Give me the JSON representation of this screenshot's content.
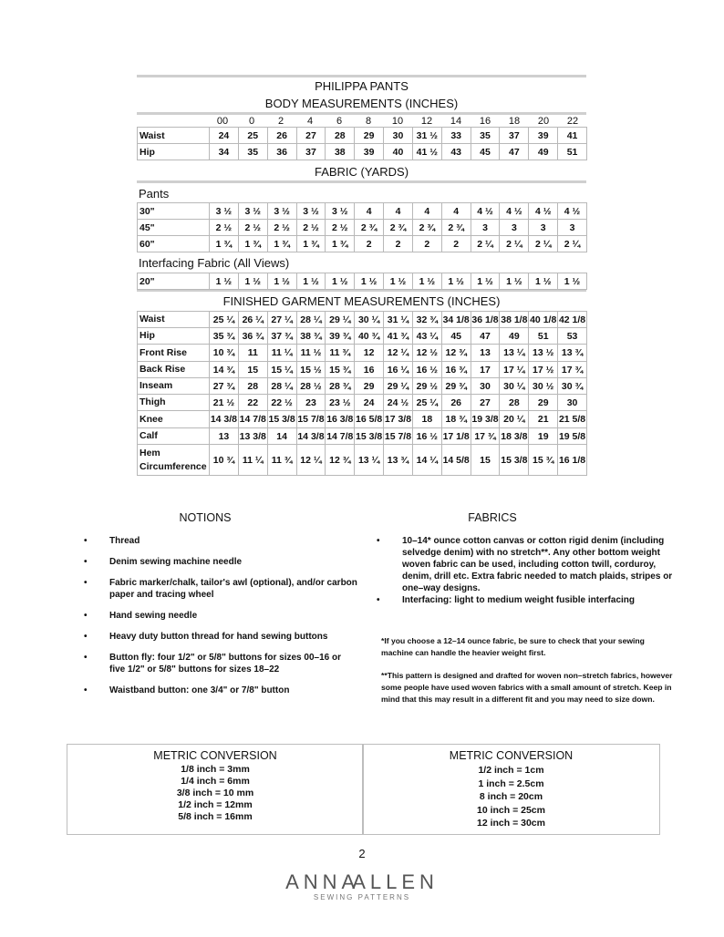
{
  "title": "PHILIPPA PANTS",
  "body_measurements": {
    "heading": "BODY MEASUREMENTS (INCHES)",
    "sizes": [
      "00",
      "0",
      "2",
      "4",
      "6",
      "8",
      "10",
      "12",
      "14",
      "16",
      "18",
      "20",
      "22"
    ],
    "rows": [
      {
        "label": "Waist",
        "values": [
          "24",
          "25",
          "26",
          "27",
          "28",
          "29",
          "30",
          "31 ½",
          "33",
          "35",
          "37",
          "39",
          "41"
        ]
      },
      {
        "label": "Hip",
        "values": [
          "34",
          "35",
          "36",
          "37",
          "38",
          "39",
          "40",
          "41 ½",
          "43",
          "45",
          "47",
          "49",
          "51"
        ]
      }
    ]
  },
  "fabric": {
    "heading": "FABRIC (YARDS)",
    "pants_label": "Pants",
    "pants_rows": [
      {
        "label": "30\"",
        "values": [
          "3 ½",
          "3 ½",
          "3 ½",
          "3 ½",
          "3 ½",
          "4",
          "4",
          "4",
          "4",
          "4 ½",
          "4 ½",
          "4 ½",
          "4 ½"
        ]
      },
      {
        "label": "45\"",
        "values": [
          "2 ½",
          "2 ½",
          "2 ½",
          "2 ½",
          "2 ½",
          "2 ¾",
          "2 ¾",
          "2 ¾",
          "2 ¾",
          "3",
          "3",
          "3",
          "3"
        ]
      },
      {
        "label": "60\"",
        "values": [
          "1 ¾",
          "1 ¾",
          "1 ¾",
          "1 ¾",
          "1 ¾",
          "2",
          "2",
          "2",
          "2",
          "2 ¼",
          "2 ¼",
          "2 ¼",
          "2 ¼"
        ]
      }
    ],
    "interfacing_label": "Interfacing Fabric (All Views)",
    "interfacing_rows": [
      {
        "label": "20\"",
        "values": [
          "1 ½",
          "1 ½",
          "1 ½",
          "1 ½",
          "1 ½",
          "1 ½",
          "1 ½",
          "1 ½",
          "1 ½",
          "1 ½",
          "1 ½",
          "1 ½",
          "1 ½"
        ]
      }
    ]
  },
  "finished": {
    "heading": "FINISHED GARMENT MEASUREMENTS (INCHES)",
    "rows": [
      {
        "label": "Waist",
        "values": [
          "25 ¼",
          "26 ¼",
          "27 ¼",
          "28 ¼",
          "29 ¼",
          "30 ¼",
          "31 ¼",
          "32 ¾",
          "34 1/8",
          "36 1/8",
          "38 1/8",
          "40 1/8",
          "42 1/8"
        ]
      },
      {
        "label": "Hip",
        "values": [
          "35 ¾",
          "36 ¾",
          "37 ¾",
          "38 ¾",
          "39 ¾",
          "40 ¾",
          "41 ¾",
          "43 ¼",
          "45",
          "47",
          "49",
          "51",
          "53"
        ]
      },
      {
        "label": "Front Rise",
        "values": [
          "10 ¾",
          "11",
          "11 ¼",
          "11 ½",
          "11 ¾",
          "12",
          "12 ¼",
          "12 ½",
          "12 ¾",
          "13",
          "13 ¼",
          "13 ½",
          "13 ¾"
        ]
      },
      {
        "label": "Back Rise",
        "values": [
          "14 ¾",
          "15",
          "15 ¼",
          "15 ½",
          "15 ¾",
          "16",
          "16 ¼",
          "16 ½",
          "16 ¾",
          "17",
          "17 ¼",
          "17 ½",
          "17 ¾"
        ]
      },
      {
        "label": "Inseam",
        "values": [
          "27 ¾",
          "28",
          "28 ¼",
          "28 ½",
          "28 ¾",
          "29",
          "29 ¼",
          "29 ½",
          "29 ¾",
          "30",
          "30 ¼",
          "30 ½",
          "30 ¾"
        ]
      },
      {
        "label": "Thigh",
        "values": [
          "21 ½",
          "22",
          "22 ½",
          "23",
          "23 ½",
          "24",
          "24 ½",
          "25 ¼",
          "26",
          "27",
          "28",
          "29",
          "30"
        ]
      },
      {
        "label": "Knee",
        "values": [
          "14 3/8",
          "14 7/8",
          "15 3/8",
          "15 7/8",
          "16 3/8",
          "16 5/8",
          "17 3/8",
          "18",
          "18 ¾",
          "19 3/8",
          "20 ¼",
          "21",
          "21 5/8"
        ]
      },
      {
        "label": "Calf",
        "values": [
          "13",
          "13 3/8",
          "14",
          "14 3/8",
          "14 7/8",
          "15 3/8",
          "15 7/8",
          "16 ½",
          "17 1/8",
          "17 ¾",
          "18 3/8",
          "19",
          "19 5/8"
        ]
      },
      {
        "label": "Hem Circumference",
        "values": [
          "10 ¾",
          "11 ¼",
          "11 ¾",
          "12 ¼",
          "12 ¾",
          "13 ¼",
          "13 ¾",
          "14 ¼",
          "14 5/8",
          "15",
          "15 3/8",
          "15 ¾",
          "16 1/8"
        ]
      }
    ]
  },
  "notions": {
    "heading": "NOTIONS",
    "items": [
      "Thread",
      "Denim sewing machine needle",
      "Fabric marker/chalk, tailor's awl (optional), and/or carbon paper and tracing wheel",
      "Hand sewing needle",
      "Heavy duty button thread for hand  sewing buttons",
      "Button fly: four 1/2\" or 5/8\" buttons for sizes 00–16 or five 1/2\" or 5/8\" buttons for sizes 18–22",
      "Waistband button: one 3/4\" or 7/8\" button"
    ]
  },
  "fabrics": {
    "heading": "FABRICS",
    "items": [
      "10–14* ounce cotton canvas or cotton rigid denim (including selvedge denim) with no stretch**. Any other bottom weight woven fabric can be used, including cotton twill, corduroy, denim, drill etc. Extra fabric needed to match plaids, stripes or one–way designs.",
      "Interfacing: light to medium weight fusible interfacing"
    ],
    "note1": "*If you choose a 12–14 ounce fabric, be sure to check that your sewing machine can handle the heavier weight first.",
    "note2": "**This pattern is designed and drafted for woven non–stretch fabrics, however some people have used woven fabrics with a small amount of stretch. Keep in mind that this may result in a different fit and you may need to size down."
  },
  "metric_left": {
    "heading": "METRIC CONVERSION",
    "lines": [
      "1/8 inch = 3mm",
      "1/4 inch = 6mm",
      "3/8 inch = 10 mm",
      "1/2 inch = 12mm",
      "5/8 inch = 16mm"
    ]
  },
  "metric_right": {
    "heading": "METRIC CONVERSION",
    "lines": [
      "1/2 inch = 1cm",
      "1 inch = 2.5cm",
      "8 inch = 20cm",
      "10 inch = 25cm",
      "12 inch = 30cm"
    ]
  },
  "page_number": "2",
  "logo": {
    "name": "ANNAALLEN",
    "tagline": "SEWING PATTERNS"
  },
  "bullet": "•"
}
